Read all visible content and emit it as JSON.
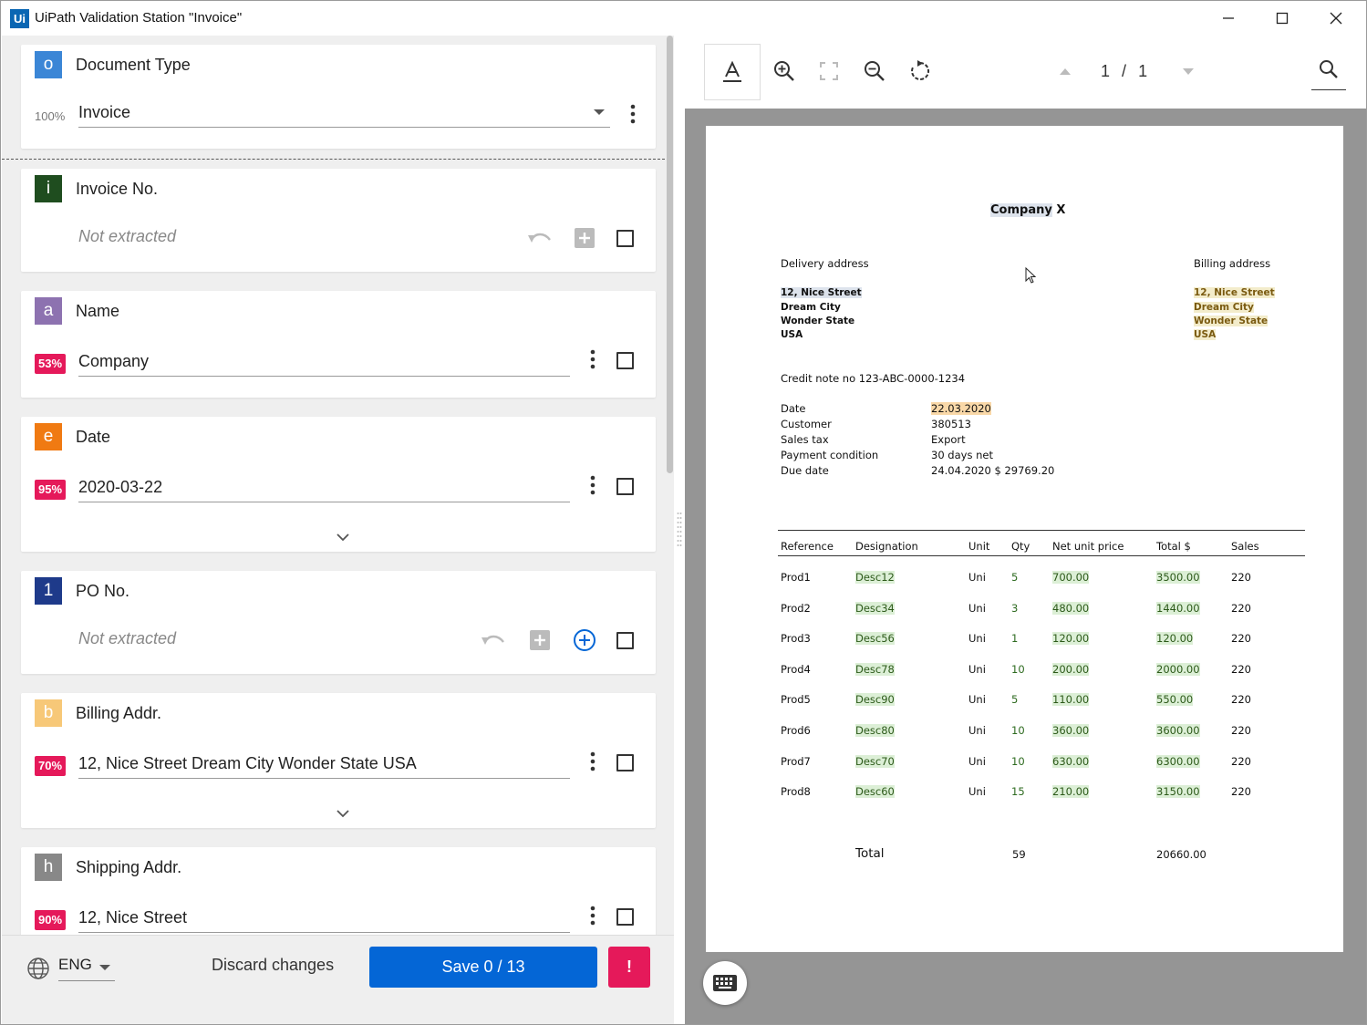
{
  "window": {
    "logo": "Ui",
    "title": "UiPath Validation Station \"Invoice\"",
    "controls": [
      "minimize-icon",
      "maximize-icon",
      "close-icon"
    ]
  },
  "cards": {
    "document_type": {
      "badge": "o",
      "badge_color": "#3b86d6",
      "title": "Document Type",
      "confidence": "100%",
      "value": "Invoice"
    },
    "invoice_no": {
      "badge": "i",
      "badge_color": "#1f4d1f",
      "title": "Invoice No.",
      "placeholder": "Not extracted"
    },
    "name": {
      "badge": "a",
      "badge_color": "#8d72b0",
      "title": "Name",
      "confidence": "53%",
      "value": "Company"
    },
    "date": {
      "badge": "e",
      "badge_color": "#f07a12",
      "title": "Date",
      "confidence": "95%",
      "value": "2020-03-22"
    },
    "po_no": {
      "badge": "1",
      "badge_color": "#1e3a8a",
      "title": "PO No.",
      "placeholder": "Not extracted"
    },
    "billing_addr": {
      "badge": "b",
      "badge_color": "#f7c878",
      "title": "Billing Addr.",
      "confidence": "70%",
      "value": "12, Nice Street Dream City Wonder State USA"
    },
    "shipping_addr": {
      "badge": "h",
      "badge_color": "#888888",
      "title": "Shipping Addr.",
      "confidence": "90%",
      "value": "12, Nice Street"
    }
  },
  "bottom": {
    "language": "ENG",
    "discard_label": "Discard changes",
    "save_label": "Save 0 / 13",
    "warn_label": "!"
  },
  "viewer": {
    "page_current": "1",
    "page_sep": "/",
    "page_total": "1"
  },
  "document": {
    "company_a": "Company",
    "company_b": "X",
    "delivery_title": "Delivery address",
    "billing_title": "Billing address",
    "delivery_lines": [
      "12, Nice Street",
      "Dream City",
      "Wonder State",
      "USA"
    ],
    "billing_lines": [
      "12, Nice Street",
      "Dream City",
      "Wonder State",
      "USA"
    ],
    "credit_note": "Credit note no 123-ABC-0000-1234",
    "info": [
      {
        "label": "Date",
        "value": "22.03.2020"
      },
      {
        "label": "Customer",
        "value": "380513"
      },
      {
        "label": "Sales tax",
        "value": "Export"
      },
      {
        "label": "Payment condition",
        "value": "30 days net"
      },
      {
        "label": "Due date",
        "value": "24.04.2020 $ 29769.20"
      }
    ],
    "table_headers": [
      "Reference",
      "Designation",
      "Unit",
      "Qty",
      "Net unit price",
      "Total $",
      "Sales"
    ],
    "rows": [
      [
        "Prod1",
        "Desc12",
        "Uni",
        "5",
        "700.00",
        "3500.00",
        "220"
      ],
      [
        "Prod2",
        "Desc34",
        "Uni",
        "3",
        "480.00",
        "1440.00",
        "220"
      ],
      [
        "Prod3",
        "Desc56",
        "Uni",
        "1",
        "120.00",
        "120.00",
        "220"
      ],
      [
        "Prod4",
        "Desc78",
        "Uni",
        "10",
        "200.00",
        "2000.00",
        "220"
      ],
      [
        "Prod5",
        "Desc90",
        "Uni",
        "5",
        "110.00",
        "550.00",
        "220"
      ],
      [
        "Prod6",
        "Desc80",
        "Uni",
        "10",
        "360.00",
        "3600.00",
        "220"
      ],
      [
        "Prod7",
        "Desc70",
        "Uni",
        "10",
        "630.00",
        "6300.00",
        "220"
      ],
      [
        "Prod8",
        "Desc60",
        "Uni",
        "15",
        "210.00",
        "3150.00",
        "220"
      ]
    ],
    "total_label": "Total",
    "total_qty": "59",
    "total_amount": "20660.00"
  }
}
